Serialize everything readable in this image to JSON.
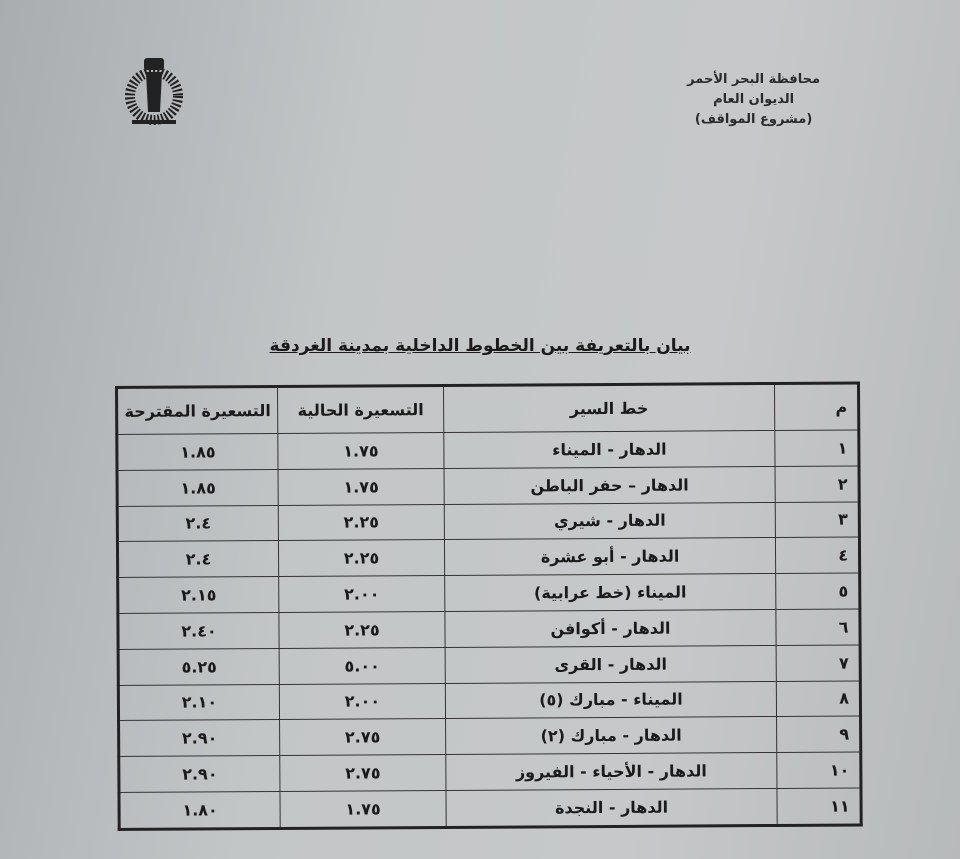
{
  "header": {
    "lines": [
      "محافظة البحر الأحمر",
      "الديوان العام",
      "(مشروع المواقف)"
    ]
  },
  "logo": {
    "name": "red-sea-governorate-logo",
    "text": "محافظة البحر الأحمر"
  },
  "title": "بيان بالتعريفة بين الخطوط الداخلية بمدينة الغردقة",
  "table": {
    "columns": [
      "م",
      "خط السير",
      "التسعيرة الحالية",
      "التسعيرة المقترحة"
    ],
    "rows": [
      [
        "١",
        "الدهار - الميناء",
        "١.٧٥",
        "١.٨٥"
      ],
      [
        "٢",
        "الدهار – حفر الباطن",
        "١.٧٥",
        "١.٨٥"
      ],
      [
        "٣",
        "الدهار - شيري",
        "٢.٢٥",
        "٢.٤"
      ],
      [
        "٤",
        "الدهار - أبو عشرة",
        "٢.٢٥",
        "٢.٤"
      ],
      [
        "٥",
        "الميناء (خط عرابية)",
        "٢.٠٠",
        "٢.١٥"
      ],
      [
        "٦",
        "الدهار - أكوافن",
        "٢.٢٥",
        "٢.٤٠"
      ],
      [
        "٧",
        "الدهار - القرى",
        "٥.٠٠",
        "٥.٢٥"
      ],
      [
        "٨",
        "الميناء - مبارك (٥)",
        "٢.٠٠",
        "٢.١٠"
      ],
      [
        "٩",
        "الدهار - مبارك (٢)",
        "٢.٧٥",
        "٢.٩٠"
      ],
      [
        "١٠",
        "الدهار - الأحياء - الفيروز",
        "٢.٧٥",
        "٢.٩٠"
      ],
      [
        "١١",
        "الدهار - النجدة",
        "١.٧٥",
        "١.٨٠"
      ]
    ]
  }
}
